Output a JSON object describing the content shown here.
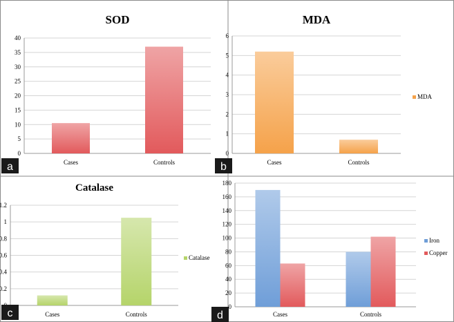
{
  "colors": {
    "sod": "#e25a5c",
    "mda": "#f5a24a",
    "catalase": "#b5d46a",
    "iron": "#6f9ed8",
    "copper": "#e25a5c",
    "grid": "#d4d4d4",
    "axis": "#999999",
    "letter_bg": "#1a1a1a"
  },
  "chart_data": [
    {
      "id": "a",
      "panel_letter": "a",
      "type": "bar",
      "title": "SOD",
      "categories": [
        "Cases",
        "Controls"
      ],
      "series": [
        {
          "name": "",
          "color_key": "sod",
          "values": [
            10.5,
            37
          ]
        }
      ],
      "ylim": [
        0,
        40
      ],
      "yticks": [
        "0",
        "5",
        "10",
        "15",
        "20",
        "25",
        "30",
        "35",
        "40"
      ],
      "grid": true,
      "legend": "none"
    },
    {
      "id": "b",
      "panel_letter": "b",
      "type": "bar",
      "title": "MDA",
      "categories": [
        "Cases",
        "Controls"
      ],
      "series": [
        {
          "name": "MDA",
          "color_key": "mda",
          "values": [
            5.2,
            0.7
          ]
        }
      ],
      "ylim": [
        0,
        6
      ],
      "yticks": [
        "0",
        "1",
        "2",
        "3",
        "4",
        "5",
        "6"
      ],
      "grid": true,
      "legend": "right"
    },
    {
      "id": "c",
      "panel_letter": "c",
      "type": "bar",
      "title": "Catalase",
      "categories": [
        "Cases",
        "Controls"
      ],
      "series": [
        {
          "name": "Catalase",
          "color_key": "catalase",
          "values": [
            0.12,
            1.05
          ]
        }
      ],
      "ylim": [
        0,
        1.2
      ],
      "yticks": [
        "0",
        "0.2",
        "0.4",
        "0.6",
        "0.8",
        "1",
        "1.2"
      ],
      "grid": true,
      "legend": "right"
    },
    {
      "id": "d",
      "panel_letter": "d",
      "type": "bar",
      "title": "",
      "categories": [
        "Cases",
        "Controls"
      ],
      "series": [
        {
          "name": "Iron",
          "color_key": "iron",
          "values": [
            170,
            80
          ]
        },
        {
          "name": "Copper",
          "color_key": "copper",
          "values": [
            63,
            102
          ]
        }
      ],
      "ylim": [
        0,
        180
      ],
      "yticks": [
        "0",
        "20",
        "40",
        "60",
        "80",
        "100",
        "120",
        "140",
        "160",
        "180"
      ],
      "grid": true,
      "legend": "right"
    }
  ]
}
